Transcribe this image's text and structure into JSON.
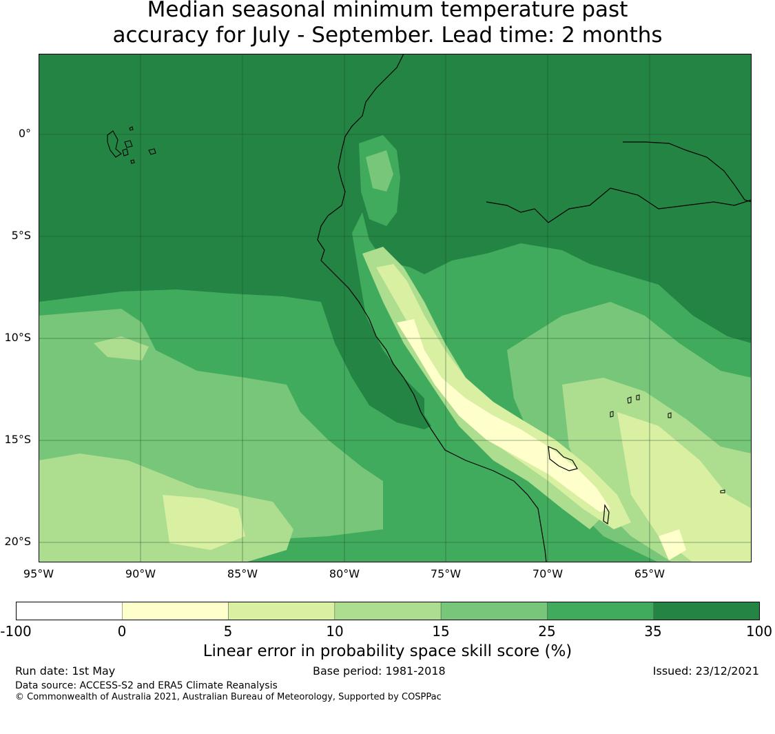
{
  "title_line1": "Median seasonal minimum temperature past",
  "title_line2": "accuracy for July - September. Lead time: 2 months",
  "lat_labels": [
    "0°",
    "5°S",
    "10°S",
    "15°S",
    "20°S"
  ],
  "lon_labels": [
    "95°W",
    "90°W",
    "85°W",
    "80°W",
    "75°W",
    "70°W",
    "65°W"
  ],
  "colorbar": {
    "ticks": [
      "-100",
      "0",
      "5",
      "10",
      "15",
      "25",
      "35",
      "100"
    ],
    "colors": [
      "#ffffff",
      "#ffffcc",
      "#d9f0a3",
      "#addd8e",
      "#78c679",
      "#41ab5d",
      "#238443"
    ],
    "label": "Linear error in probability space skill score (%)"
  },
  "footer": {
    "run_date": "Run date: 1st May",
    "base_period": "Base period: 1981-2018",
    "issued": "Issued: 23/12/2021",
    "data_source": "Data source: ACCESS-S2 and ERA5 Climate Reanalysis",
    "copyright": "© Commonwealth of Australia 2021, Australian Bureau of Meteorology, Supported by COSPPac"
  },
  "chart_data": {
    "type": "heatmap",
    "title": "Median seasonal minimum temperature past accuracy for July - September. Lead time: 2 months",
    "lon_range": [
      -95,
      -60
    ],
    "lat_range": [
      -21,
      4
    ],
    "lon_ticks": [
      -95,
      -90,
      -85,
      -80,
      -75,
      -70,
      -65
    ],
    "lat_ticks": [
      0,
      -5,
      -10,
      -15,
      -20
    ],
    "color_bins": [
      -100,
      0,
      5,
      10,
      15,
      25,
      35,
      100
    ],
    "colorbar_label": "Linear error in probability space skill score (%)"
  }
}
